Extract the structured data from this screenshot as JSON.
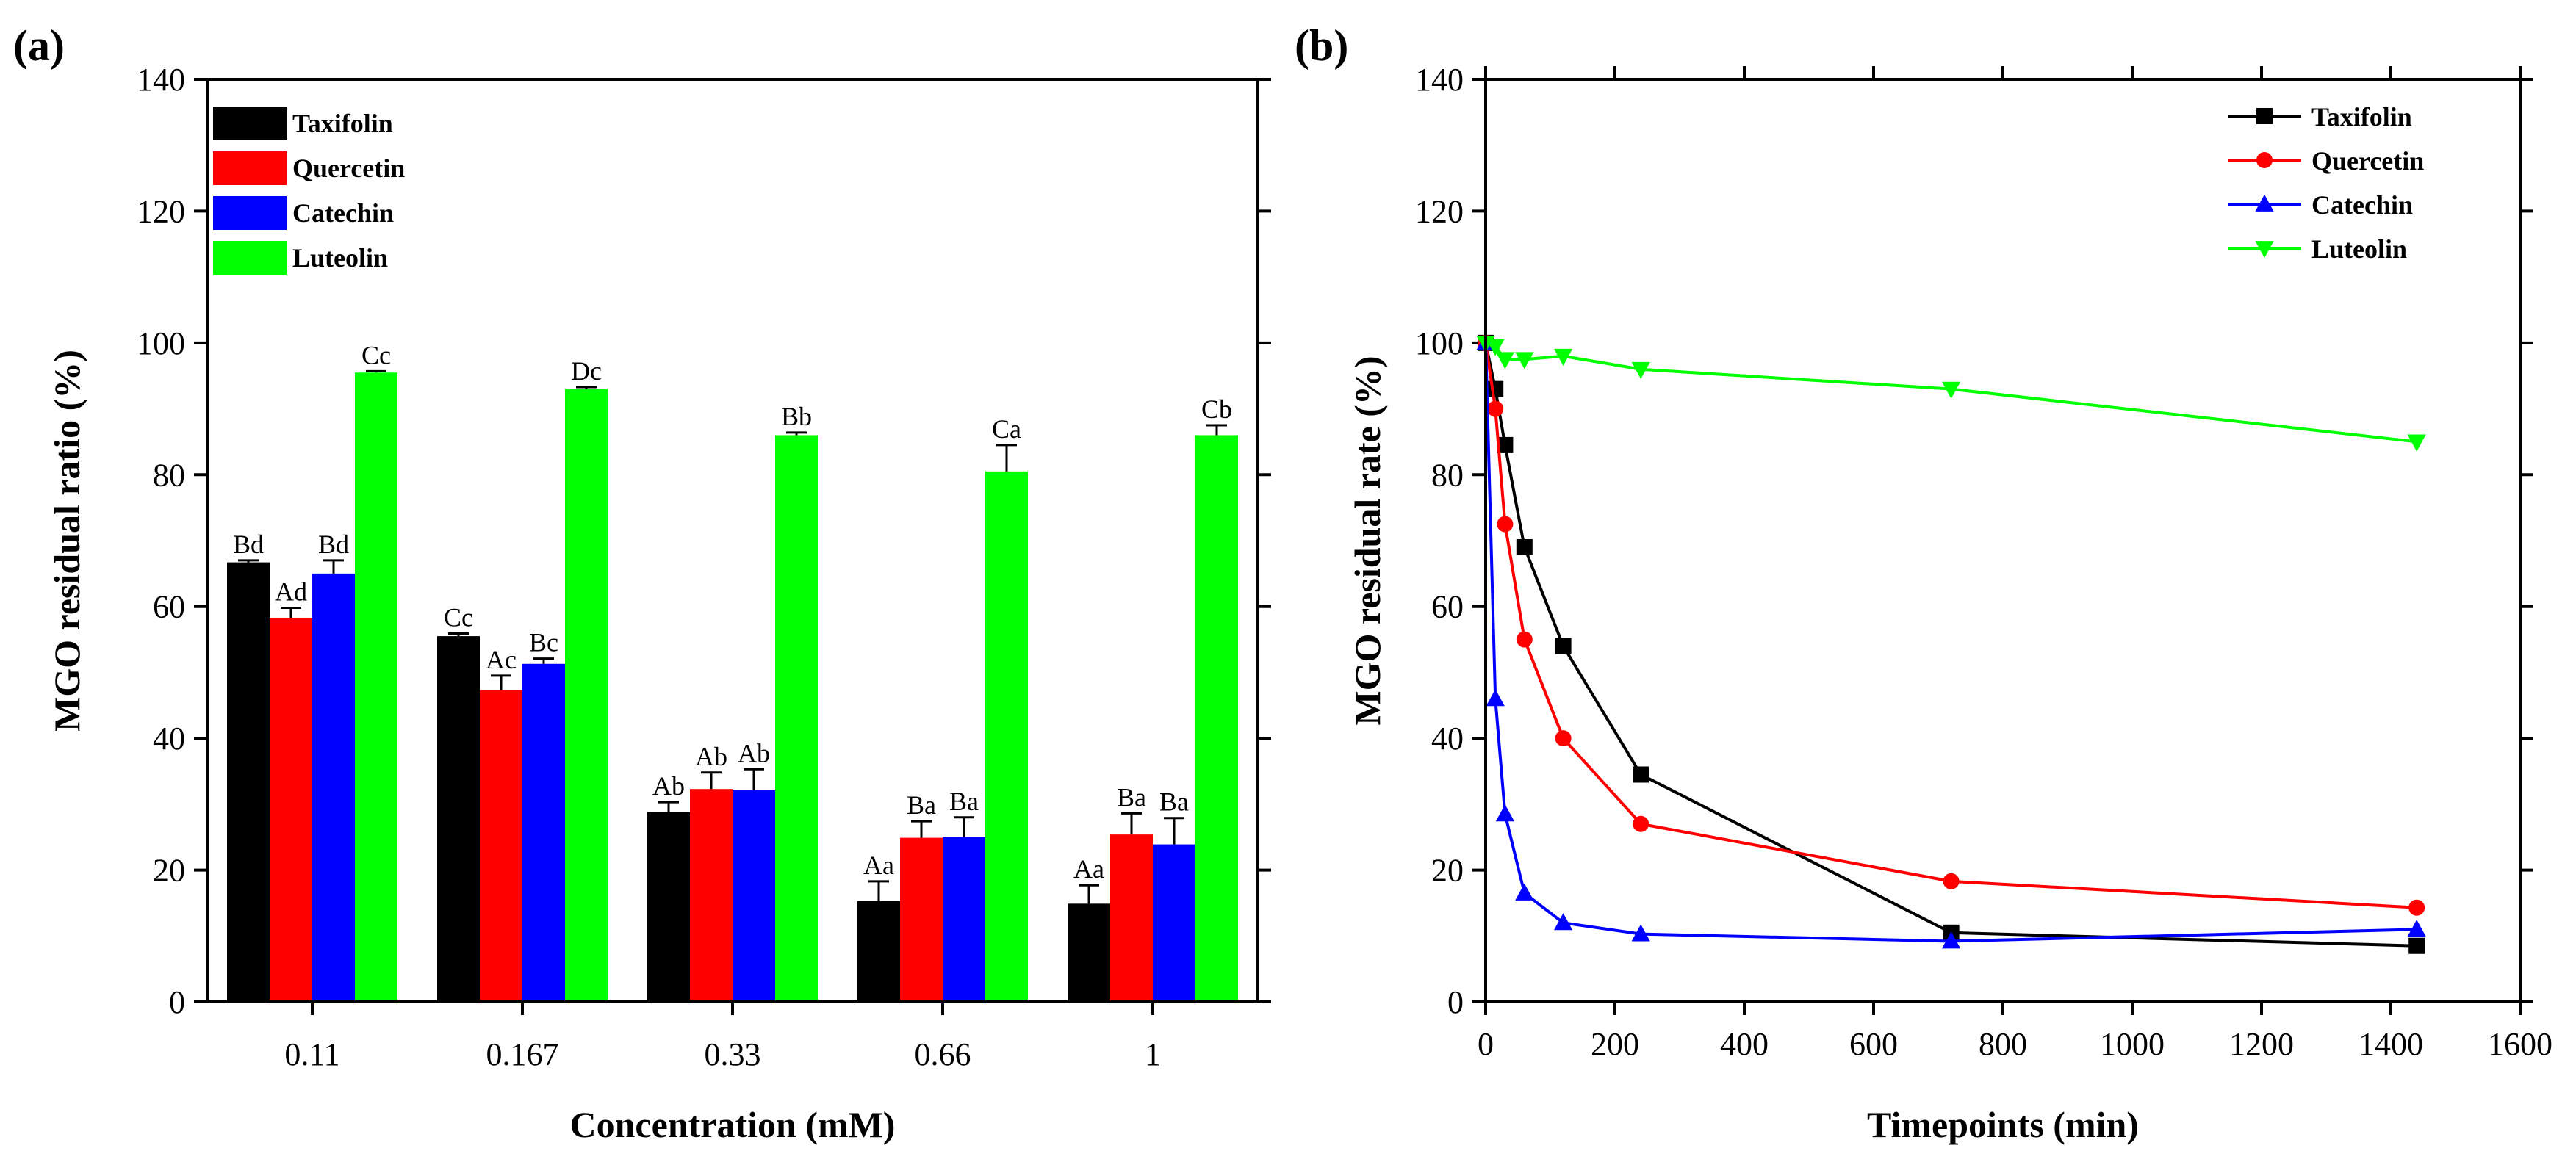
{
  "chart_data": [
    {
      "type": "bar",
      "panel_label": "(a)",
      "xlabel": "Concentration (mM)",
      "ylabel": "MGO residual ratio (%)",
      "ylim": [
        0,
        140
      ],
      "yticks": [
        0,
        20,
        40,
        60,
        80,
        100,
        120,
        140
      ],
      "categories": [
        "0.11",
        "0.167",
        "0.33",
        "0.66",
        "1"
      ],
      "legend_position": "top-left",
      "series": [
        {
          "name": "Taxifolin",
          "color": "#000000",
          "values": [
            66.7,
            55.5,
            28.8,
            15.3,
            14.9
          ],
          "errors": [
            0.3,
            0.4,
            1.5,
            3.0,
            2.8
          ],
          "labels": [
            "Bd",
            "Cc",
            "Ab",
            "Aa",
            "Aa"
          ]
        },
        {
          "name": "Quercetin",
          "color": "#ff0000",
          "values": [
            58.3,
            47.3,
            32.3,
            24.9,
            25.4
          ],
          "errors": [
            1.5,
            2.2,
            2.5,
            2.5,
            3.2
          ],
          "labels": [
            "Ad",
            "Ac",
            "Ab",
            "Ba",
            "Ba"
          ]
        },
        {
          "name": "Catechin",
          "color": "#0000ff",
          "values": [
            65.0,
            51.3,
            32.1,
            25.0,
            23.9
          ],
          "errors": [
            2.0,
            0.8,
            3.2,
            3.0,
            4.0
          ],
          "labels": [
            "Bd",
            "Bc",
            "Ab",
            "Ba",
            "Ba"
          ]
        },
        {
          "name": "Luteolin",
          "color": "#00ff00",
          "values": [
            95.5,
            93.0,
            86.0,
            80.5,
            86.0
          ],
          "errors": [
            0.2,
            0.3,
            0.4,
            4.0,
            1.5
          ],
          "labels": [
            "Cc",
            "Dc",
            "Bb",
            "Ca",
            "Cb"
          ]
        }
      ]
    },
    {
      "type": "line",
      "panel_label": "(b)",
      "xlabel": "Timepoints (min)",
      "ylabel": "MGO residual rate (%)",
      "xlim": [
        0,
        1600
      ],
      "ylim": [
        0,
        140
      ],
      "xticks": [
        0,
        200,
        400,
        600,
        800,
        1000,
        1200,
        1400,
        1600
      ],
      "yticks": [
        0,
        20,
        40,
        60,
        80,
        100,
        120,
        140
      ],
      "legend_position": "top-right",
      "series": [
        {
          "name": "Taxifolin",
          "color": "#000000",
          "marker": "square",
          "x": [
            0,
            15,
            30,
            60,
            120,
            240,
            720,
            1440
          ],
          "y": [
            100,
            93,
            84.5,
            69,
            54,
            34.5,
            10.5,
            8.5
          ]
        },
        {
          "name": "Quercetin",
          "color": "#ff0000",
          "marker": "circle",
          "x": [
            0,
            15,
            30,
            60,
            120,
            240,
            720,
            1440
          ],
          "y": [
            100,
            90,
            72.5,
            55,
            40,
            27,
            18.3,
            14.3
          ]
        },
        {
          "name": "Catechin",
          "color": "#0000ff",
          "marker": "triangle-up",
          "x": [
            0,
            15,
            30,
            60,
            120,
            240,
            720,
            1440
          ],
          "y": [
            100,
            46,
            28.5,
            16.5,
            12,
            10.3,
            9.2,
            11
          ]
        },
        {
          "name": "Luteolin",
          "color": "#00ff00",
          "marker": "triangle-down",
          "x": [
            0,
            15,
            30,
            60,
            120,
            240,
            720,
            1440
          ],
          "y": [
            100,
            99.5,
            97.5,
            97.5,
            98,
            96,
            93,
            85
          ]
        }
      ]
    }
  ]
}
